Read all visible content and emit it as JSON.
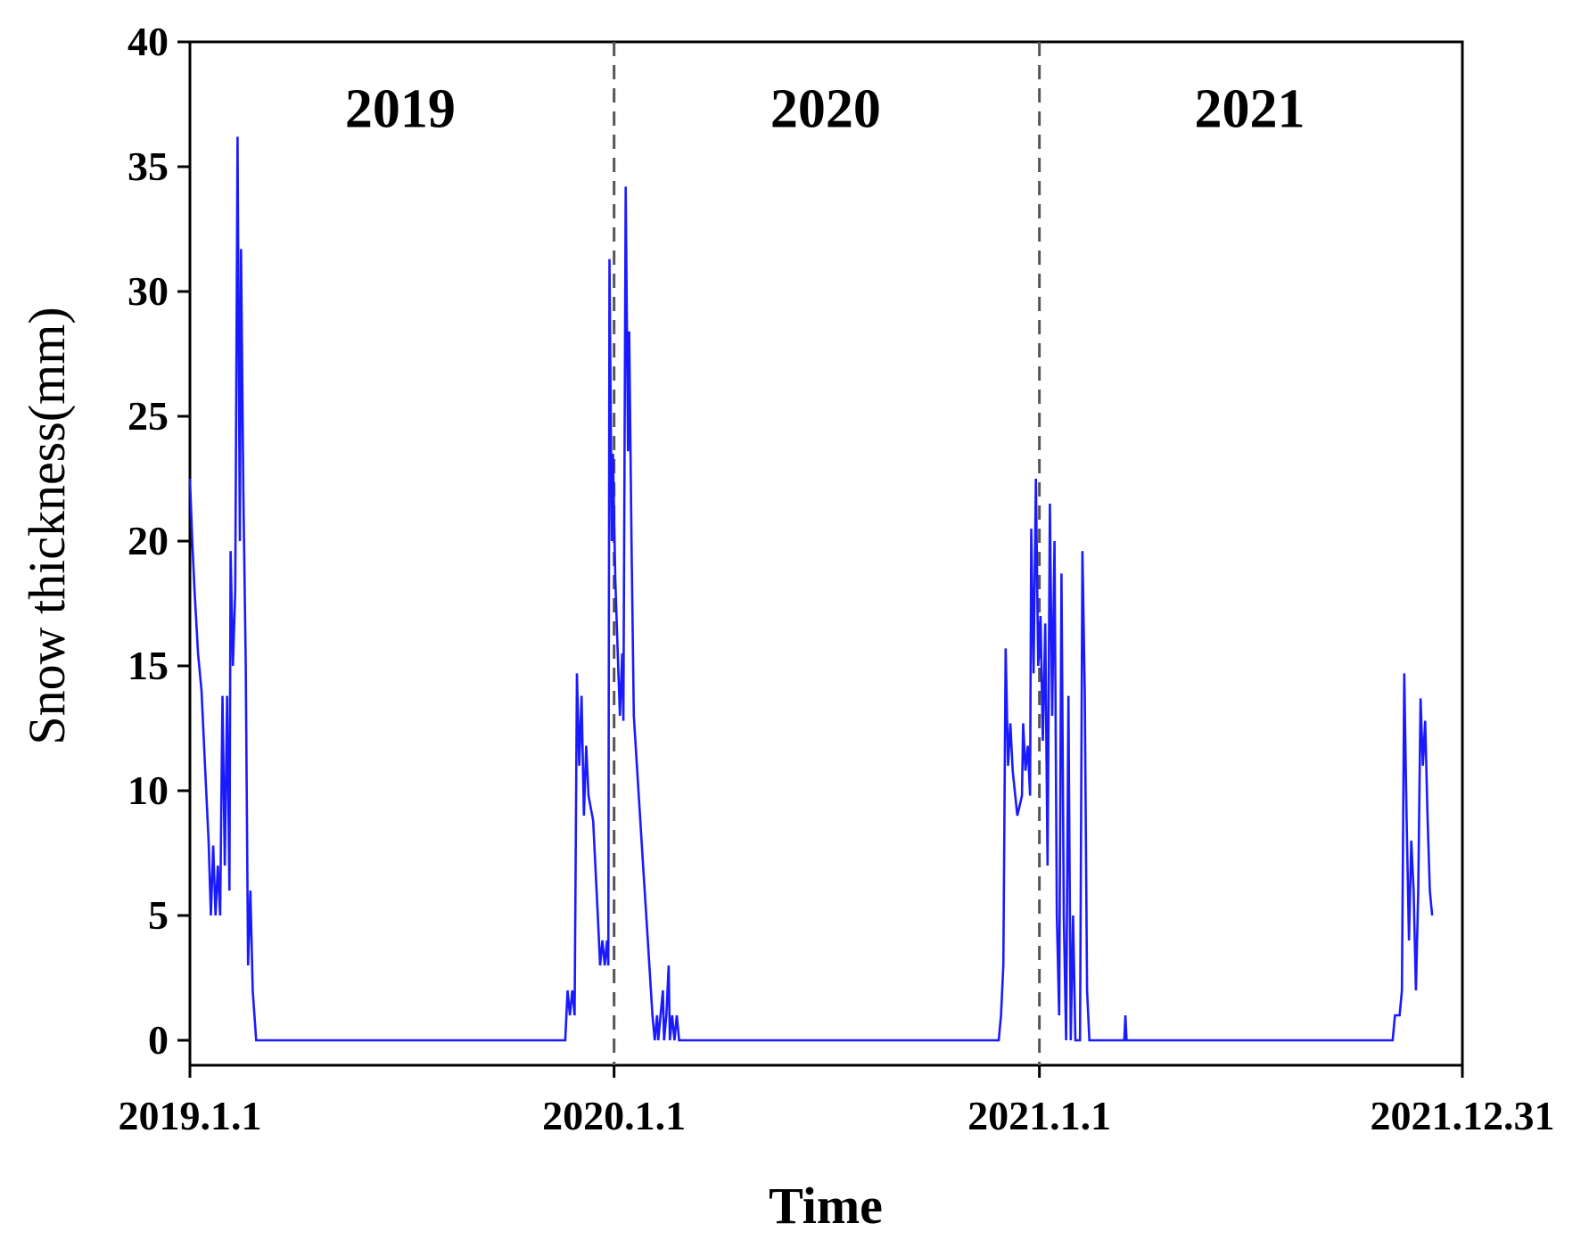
{
  "chart_data": {
    "type": "line",
    "title": "",
    "xlabel": "Time",
    "ylabel": "Snow thickness(mm)",
    "ylim": [
      -1,
      40
    ],
    "xlim": [
      "2019-01-01",
      "2021-12-31"
    ],
    "y_ticks": [
      0,
      5,
      10,
      15,
      20,
      25,
      30,
      35,
      40
    ],
    "x_ticks": [
      {
        "date": "2019-01-01",
        "label": "2019.1.1"
      },
      {
        "date": "2020-01-01",
        "label": "2020.1.1"
      },
      {
        "date": "2021-01-01",
        "label": "2021.1.1"
      },
      {
        "date": "2021-12-31",
        "label": "2021.12.31"
      }
    ],
    "year_separators": [
      "2020-01-01",
      "2021-01-01"
    ],
    "year_labels": [
      {
        "text": "2019",
        "date": "2019-07-01",
        "y": 37.3
      },
      {
        "text": "2020",
        "date": "2020-07-01",
        "y": 37.3
      },
      {
        "text": "2021",
        "date": "2021-07-01",
        "y": 37.3
      }
    ],
    "line_color": "#1a1aff",
    "separator_color": "#555555",
    "grid": false,
    "series": [
      {
        "values": [
          [
            "2019-01-01",
            22.5
          ],
          [
            "2019-01-03",
            20
          ],
          [
            "2019-01-05",
            18
          ],
          [
            "2019-01-08",
            15.5
          ],
          [
            "2019-01-11",
            14
          ],
          [
            "2019-01-14",
            11
          ],
          [
            "2019-01-17",
            8
          ],
          [
            "2019-01-19",
            5
          ],
          [
            "2019-01-21",
            7.8
          ],
          [
            "2019-01-23",
            5
          ],
          [
            "2019-01-25",
            7
          ],
          [
            "2019-01-27",
            5
          ],
          [
            "2019-01-29",
            13.8
          ],
          [
            "2019-01-31",
            7
          ],
          [
            "2019-02-02",
            13.8
          ],
          [
            "2019-02-04",
            6
          ],
          [
            "2019-02-05",
            19.6
          ],
          [
            "2019-02-07",
            15
          ],
          [
            "2019-02-09",
            18
          ],
          [
            "2019-02-11",
            36.2
          ],
          [
            "2019-02-13",
            20
          ],
          [
            "2019-02-14",
            31.7
          ],
          [
            "2019-02-16",
            22
          ],
          [
            "2019-02-18",
            15
          ],
          [
            "2019-02-20",
            3
          ],
          [
            "2019-02-22",
            6
          ],
          [
            "2019-02-24",
            2
          ],
          [
            "2019-02-27",
            0
          ],
          [
            "2019-11-20",
            0
          ],
          [
            "2019-11-22",
            2
          ],
          [
            "2019-11-24",
            1
          ],
          [
            "2019-11-26",
            2
          ],
          [
            "2019-11-28",
            1
          ],
          [
            "2019-11-30",
            14.7
          ],
          [
            "2019-12-02",
            11
          ],
          [
            "2019-12-04",
            13.8
          ],
          [
            "2019-12-06",
            9
          ],
          [
            "2019-12-08",
            11.8
          ],
          [
            "2019-12-10",
            9.8
          ],
          [
            "2019-12-14",
            8.8
          ],
          [
            "2019-12-18",
            5
          ],
          [
            "2019-12-20",
            3
          ],
          [
            "2019-12-22",
            4
          ],
          [
            "2019-12-24",
            3
          ],
          [
            "2019-12-26",
            4
          ],
          [
            "2019-12-27",
            3
          ],
          [
            "2019-12-28",
            31.3
          ],
          [
            "2019-12-30",
            20
          ],
          [
            "2019-12-31",
            23.5
          ],
          [
            "2020-01-02",
            18.5
          ],
          [
            "2020-01-04",
            15.7
          ],
          [
            "2020-01-06",
            13
          ],
          [
            "2020-01-08",
            15.5
          ],
          [
            "2020-01-09",
            12.8
          ],
          [
            "2020-01-11",
            34.2
          ],
          [
            "2020-01-13",
            23.6
          ],
          [
            "2020-01-14",
            28.4
          ],
          [
            "2020-01-16",
            20
          ],
          [
            "2020-01-18",
            13
          ],
          [
            "2020-01-22",
            10
          ],
          [
            "2020-01-26",
            7
          ],
          [
            "2020-01-30",
            4
          ],
          [
            "2020-02-03",
            1
          ],
          [
            "2020-02-05",
            0
          ],
          [
            "2020-02-07",
            1
          ],
          [
            "2020-02-08",
            0
          ],
          [
            "2020-02-10",
            1
          ],
          [
            "2020-02-12",
            2
          ],
          [
            "2020-02-13",
            0
          ],
          [
            "2020-02-15",
            1
          ],
          [
            "2020-02-17",
            3
          ],
          [
            "2020-02-18",
            0
          ],
          [
            "2020-02-20",
            1
          ],
          [
            "2020-02-22",
            0
          ],
          [
            "2020-02-24",
            1
          ],
          [
            "2020-02-26",
            0
          ],
          [
            "2020-11-27",
            0
          ],
          [
            "2020-11-29",
            1
          ],
          [
            "2020-12-01",
            3
          ],
          [
            "2020-12-03",
            15.7
          ],
          [
            "2020-12-05",
            11
          ],
          [
            "2020-12-07",
            12.7
          ],
          [
            "2020-12-09",
            10.8
          ],
          [
            "2020-12-13",
            9
          ],
          [
            "2020-12-17",
            9.8
          ],
          [
            "2020-12-18",
            12.7
          ],
          [
            "2020-12-20",
            10.8
          ],
          [
            "2020-12-22",
            11.8
          ],
          [
            "2020-12-24",
            9.8
          ],
          [
            "2020-12-25",
            20.5
          ],
          [
            "2020-12-27",
            14.7
          ],
          [
            "2020-12-29",
            22.5
          ],
          [
            "2020-12-31",
            15
          ],
          [
            "2021-01-02",
            17
          ],
          [
            "2021-01-04",
            12
          ],
          [
            "2021-01-06",
            16.7
          ],
          [
            "2021-01-08",
            7
          ],
          [
            "2021-01-10",
            21.5
          ],
          [
            "2021-01-12",
            13
          ],
          [
            "2021-01-14",
            20
          ],
          [
            "2021-01-16",
            5
          ],
          [
            "2021-01-18",
            1
          ],
          [
            "2021-01-20",
            18.7
          ],
          [
            "2021-01-22",
            5
          ],
          [
            "2021-01-24",
            0
          ],
          [
            "2021-01-26",
            13.8
          ],
          [
            "2021-01-28",
            0
          ],
          [
            "2021-01-30",
            5
          ],
          [
            "2021-02-01",
            0
          ],
          [
            "2021-02-05",
            0
          ],
          [
            "2021-02-07",
            19.6
          ],
          [
            "2021-02-09",
            14
          ],
          [
            "2021-02-11",
            2
          ],
          [
            "2021-02-13",
            0
          ],
          [
            "2021-03-15",
            0
          ],
          [
            "2021-03-16",
            1
          ],
          [
            "2021-03-17",
            0
          ],
          [
            "2021-11-01",
            0
          ],
          [
            "2021-11-03",
            1
          ],
          [
            "2021-11-07",
            1
          ],
          [
            "2021-11-09",
            2
          ],
          [
            "2021-11-11",
            14.7
          ],
          [
            "2021-11-13",
            9
          ],
          [
            "2021-11-15",
            4
          ],
          [
            "2021-11-17",
            8
          ],
          [
            "2021-11-19",
            6
          ],
          [
            "2021-11-21",
            2
          ],
          [
            "2021-11-23",
            6
          ],
          [
            "2021-11-25",
            13.7
          ],
          [
            "2021-11-27",
            11
          ],
          [
            "2021-11-29",
            12.8
          ],
          [
            "2021-12-01",
            9
          ],
          [
            "2021-12-03",
            6
          ],
          [
            "2021-12-05",
            5
          ]
        ]
      }
    ]
  }
}
